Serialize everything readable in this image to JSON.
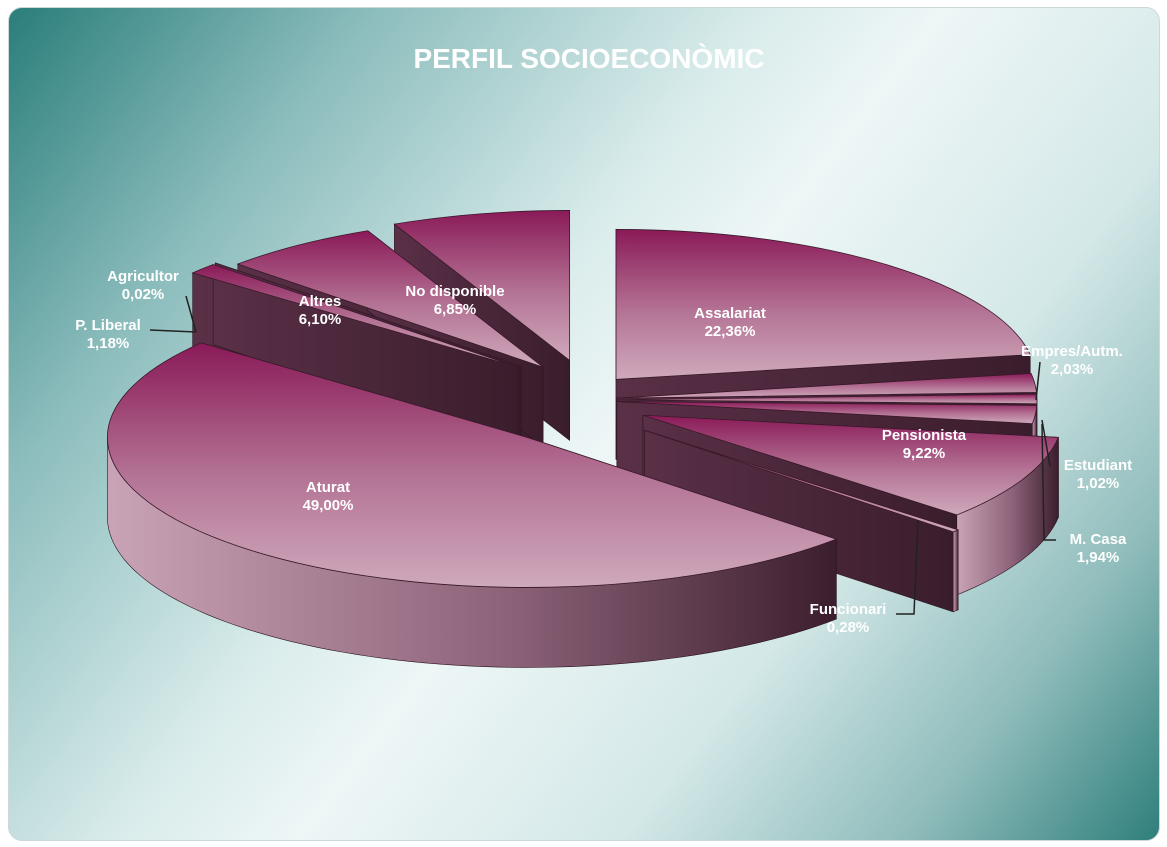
{
  "chart_data": {
    "type": "pie",
    "title": "PERFIL SOCIOECONÒMIC",
    "slices": [
      {
        "name": "Assalariat",
        "value": 22.36,
        "label": "22,36%"
      },
      {
        "name": "Empres/Autm.",
        "value": 2.03,
        "label": "2,03%"
      },
      {
        "name": "Estudiant",
        "value": 1.02,
        "label": "1,02%"
      },
      {
        "name": "M. Casa",
        "value": 1.94,
        "label": "1,94%"
      },
      {
        "name": "Pensionista",
        "value": 9.22,
        "label": "9,22%"
      },
      {
        "name": "Funcionari",
        "value": 0.28,
        "label": "0,28%"
      },
      {
        "name": "Aturat",
        "value": 49.0,
        "label": "49,00%"
      },
      {
        "name": "P. Liberal",
        "value": 1.18,
        "label": "1,18%"
      },
      {
        "name": "Agricultor",
        "value": 0.02,
        "label": "0,02%"
      },
      {
        "name": "Altres",
        "value": 6.1,
        "label": "6,10%"
      },
      {
        "name": "No disponible",
        "value": 6.85,
        "label": "6,85%"
      }
    ],
    "legend": "none",
    "style": "3d-exploded",
    "colors": {
      "top": "#8e1f5c",
      "top_light": "#c9a0b4",
      "side": "#4a2438",
      "side_light": "#b88aa0"
    }
  }
}
